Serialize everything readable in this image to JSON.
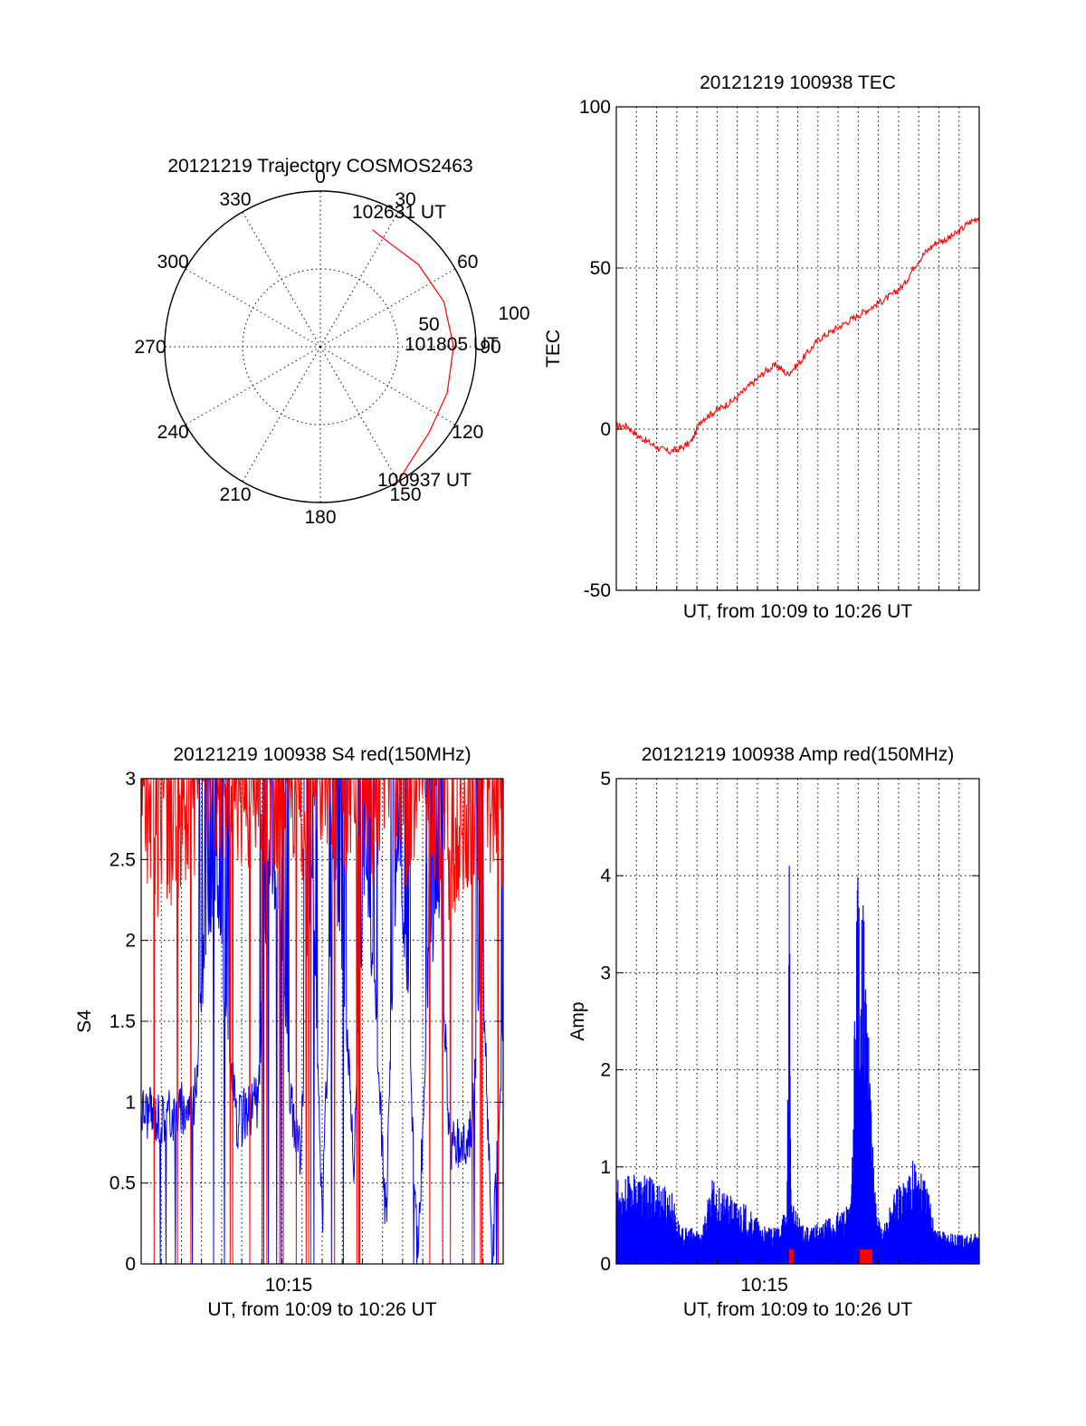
{
  "chart_data": [
    {
      "type": "polar",
      "title": "20121219 Trajectory COSMOS2463",
      "angle_ticks": [
        "0",
        "30",
        "60",
        "90",
        "120",
        "150",
        "180",
        "210",
        "240",
        "270",
        "300",
        "330"
      ],
      "radial_ticks": [
        "50",
        "100"
      ],
      "series": [
        {
          "color": "#ff0000",
          "points": [
            {
              "az": 150,
              "el": 0
            },
            {
              "az": 143,
              "el": 5
            },
            {
              "az": 128,
              "el": 10
            },
            {
              "az": 110,
              "el": 12
            },
            {
              "az": 90,
              "el": 13
            },
            {
              "az": 70,
              "el": 14
            },
            {
              "az": 50,
              "el": 16
            },
            {
              "az": 35,
              "el": 18
            },
            {
              "az": 24,
              "el": 16
            }
          ]
        }
      ],
      "annotations": [
        "102631 UT",
        "101805 UT",
        "100937 UT"
      ]
    },
    {
      "type": "line",
      "title": "20121219 100938 TEC",
      "ylabel": "TEC",
      "xlabel": "UT, from 10:09 to 10:26 UT",
      "ylim": [
        -50,
        100
      ],
      "yticks": [
        "-50",
        "0",
        "50",
        "100"
      ],
      "xlim": [
        0,
        17
      ],
      "series": [
        {
          "color": "#ff0000",
          "x": [
            0,
            0.5,
            1,
            1.5,
            2,
            2.5,
            3,
            3.5,
            4,
            4.5,
            5,
            5.5,
            6,
            6.5,
            7,
            7.5,
            8,
            8.5,
            9,
            9.5,
            10,
            10.5,
            11,
            11.5,
            12,
            12.5,
            13,
            13.5,
            14,
            14.5,
            15,
            15.5,
            16,
            16.5,
            17
          ],
          "y": [
            1,
            1,
            -2,
            -4,
            -6,
            -7,
            -6,
            -4,
            3,
            5,
            7,
            9,
            12,
            15,
            18,
            20,
            17,
            20,
            24,
            28,
            30,
            32,
            34,
            36,
            38,
            40,
            42,
            45,
            51,
            55,
            58,
            59,
            61,
            64,
            66
          ]
        }
      ]
    },
    {
      "type": "line",
      "title": "20121219 100938 S4 red(150MHz)",
      "ylabel": "S4",
      "xlabel": "UT, from 10:09 to 10:26 UT",
      "ylim": [
        0,
        3
      ],
      "yticks": [
        "0",
        "0.5",
        "1",
        "1.5",
        "2",
        "2.5",
        "3"
      ],
      "xlim": [
        0,
        17
      ],
      "xticks": [
        "10:15"
      ],
      "series": [
        {
          "color": "#0000ff",
          "x": [
            0,
            1,
            2,
            2.5,
            3,
            3.5,
            4,
            4.5,
            5,
            5.5,
            6,
            6.5,
            7,
            7.5,
            8,
            8.5,
            9,
            9.5,
            10,
            10.5,
            11,
            11.5,
            12,
            12.5,
            13,
            13.5,
            14,
            14.5,
            15,
            15.5,
            16,
            16.5,
            17
          ],
          "y": [
            0.95,
            0.9,
            0.95,
            1.0,
            2.0,
            2.4,
            1.5,
            0.85,
            0.95,
            1.0,
            2.5,
            2.2,
            1.0,
            0.7,
            2.5,
            0.25,
            2.4,
            1.8,
            0.6,
            2.5,
            1.6,
            0.25,
            2.6,
            1.8,
            0.0,
            1.9,
            2.2,
            0.75,
            0.75,
            0.8,
            2.0,
            0.0,
            1.5
          ]
        },
        {
          "color": "#ff0000",
          "x": [
            0,
            1,
            2,
            2.5,
            3,
            3.5,
            4,
            4.5,
            5,
            5.5,
            6,
            6.5,
            7,
            7.5,
            8,
            8.5,
            9,
            9.5,
            10,
            10.5,
            11,
            11.5,
            12,
            12.5,
            13,
            13.5,
            14,
            14.5,
            15,
            15.5,
            16,
            16.5,
            17
          ],
          "y": [
            2.6,
            2.4,
            2.6,
            2.5,
            2.8,
            2.7,
            2.5,
            2.8,
            2.7,
            2.9,
            2.7,
            2.6,
            2.8,
            2.5,
            2.9,
            2.7,
            2.8,
            2.6,
            2.8,
            2.7,
            2.5,
            2.9,
            2.8,
            2.6,
            2.7,
            2.5,
            2.6,
            2.4,
            2.5,
            2.6,
            2.7,
            2.5,
            2.6
          ]
        }
      ]
    },
    {
      "type": "line",
      "title": "20121219 100938 Amp red(150MHz)",
      "ylabel": "Amp",
      "xlabel": "UT, from 10:09 to 10:26 UT",
      "ylim": [
        0,
        5
      ],
      "yticks": [
        "0",
        "1",
        "2",
        "3",
        "4",
        "5"
      ],
      "xlim": [
        0,
        17
      ],
      "xticks": [
        "10:15"
      ],
      "series": [
        {
          "color": "#0000ff",
          "x": [
            0,
            1,
            2,
            2.6,
            3,
            4,
            4.5,
            5,
            6,
            7,
            7.5,
            8,
            8.1,
            8.2,
            9,
            10,
            11,
            11.3,
            11.6,
            11.9,
            12.2,
            12.5,
            13,
            14,
            14.5,
            15,
            16,
            17
          ],
          "y": [
            0.7,
            0.75,
            0.7,
            0.6,
            0.3,
            0.3,
            0.7,
            0.6,
            0.5,
            0.3,
            0.3,
            0.5,
            3.8,
            0.5,
            0.3,
            0.4,
            0.5,
            3.5,
            3.0,
            1.5,
            0.4,
            0.3,
            0.6,
            0.9,
            0.7,
            0.3,
            0.25,
            0.25
          ]
        },
        {
          "color": "#ff0000",
          "x": [
            8.1,
            8.3,
            11.4,
            12.0
          ],
          "y": [
            0.15,
            0.1,
            0.15,
            0.12
          ]
        }
      ]
    }
  ]
}
